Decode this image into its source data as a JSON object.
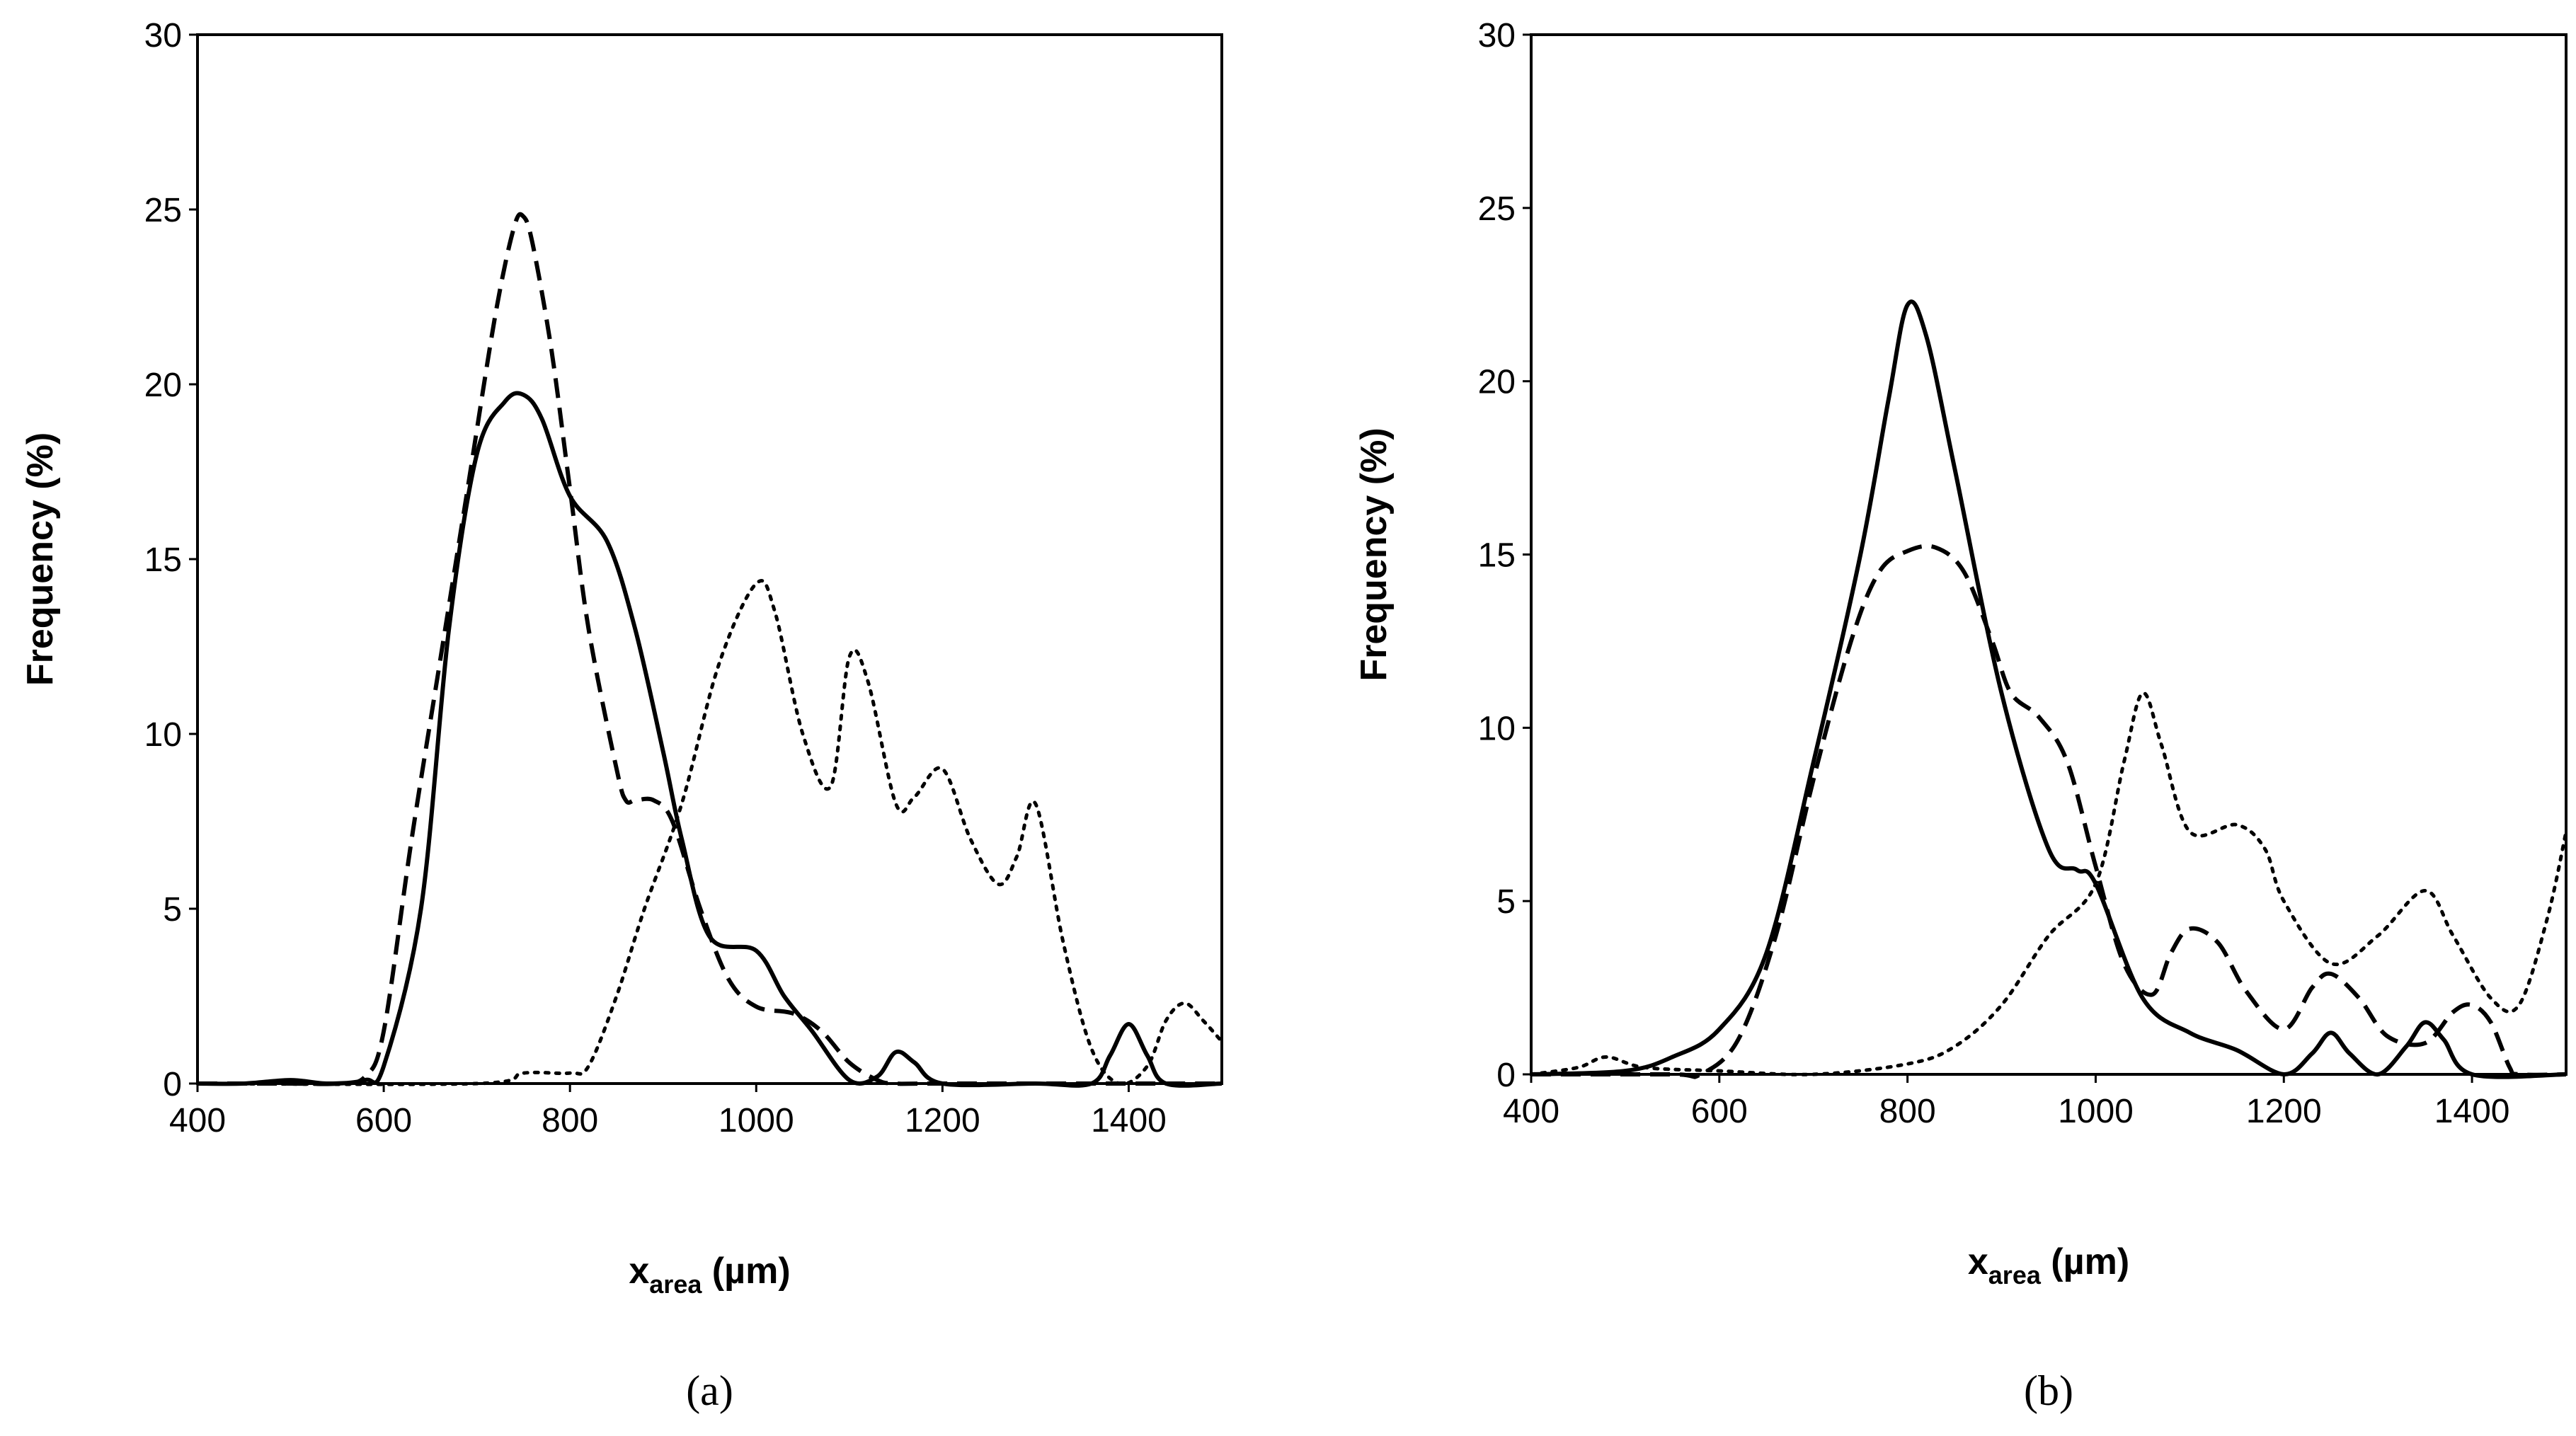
{
  "chart_data": [
    {
      "type": "line",
      "panel_label": "(a)",
      "panel_letter": "a",
      "xlabel_main": "x",
      "xlabel_sub": "area",
      "xlabel_unit": " (µm)",
      "ylabel": "Frequency (%)",
      "xlim": [
        400,
        1500
      ],
      "ylim": [
        0,
        30
      ],
      "x_ticks": [
        400,
        600,
        800,
        1000,
        1200,
        1400
      ],
      "y_ticks": [
        0,
        5,
        10,
        15,
        20,
        25,
        30
      ],
      "series": [
        {
          "name": "solid",
          "style": "solid",
          "x": [
            400,
            450,
            500,
            540,
            580,
            600,
            640,
            670,
            700,
            730,
            750,
            770,
            800,
            840,
            870,
            900,
            920,
            950,
            1000,
            1030,
            1060,
            1100,
            1130,
            1150,
            1170,
            1200,
            1300,
            1360,
            1380,
            1400,
            1420,
            1440,
            1500
          ],
          "y": [
            0,
            0,
            0.1,
            0,
            0.1,
            0.5,
            5,
            13,
            18,
            19.5,
            19.7,
            19,
            16.8,
            15.5,
            13,
            9.5,
            7,
            4.2,
            3.8,
            2.5,
            1.5,
            0.1,
            0.2,
            0.9,
            0.6,
            0,
            0,
            0,
            0.8,
            1.7,
            0.8,
            0,
            0
          ]
        },
        {
          "name": "dashed",
          "style": "dashed",
          "x": [
            400,
            500,
            550,
            580,
            600,
            630,
            660,
            690,
            720,
            740,
            750,
            760,
            780,
            800,
            820,
            850,
            860,
            870,
            890,
            910,
            940,
            970,
            1000,
            1040,
            1070,
            1100,
            1130,
            1150,
            1200,
            1500
          ],
          "y": [
            0,
            0,
            0,
            0.2,
            1.5,
            7,
            12,
            17,
            22,
            24.5,
            24.8,
            24,
            21,
            17,
            13,
            9,
            8.1,
            8.1,
            8.1,
            7.5,
            5,
            3,
            2.2,
            2,
            1.5,
            0.6,
            0.1,
            0,
            0,
            0
          ]
        },
        {
          "name": "dotted",
          "style": "dotted",
          "x": [
            400,
            700,
            750,
            800,
            820,
            850,
            880,
            920,
            960,
            1000,
            1020,
            1050,
            1080,
            1100,
            1120,
            1150,
            1170,
            1200,
            1230,
            1260,
            1280,
            1300,
            1330,
            1360,
            1390,
            1420,
            1440,
            1460,
            1480,
            1500
          ],
          "y": [
            0,
            0,
            0.3,
            0.3,
            0.5,
            2.5,
            5,
            8,
            12,
            14.3,
            13.5,
            10,
            8.5,
            12.2,
            11.5,
            8,
            8.2,
            9,
            7,
            5.7,
            6.5,
            8,
            4,
            1,
            0,
            0.5,
            1.8,
            2.3,
            1.8,
            1.2
          ]
        }
      ]
    },
    {
      "type": "line",
      "panel_label": "(b)",
      "panel_letter": "b",
      "xlabel_main": "x",
      "xlabel_sub": "area",
      "xlabel_unit": " (µm)",
      "ylabel": "Frequency (%)",
      "xlim": [
        400,
        1500
      ],
      "ylim": [
        0,
        30
      ],
      "x_ticks": [
        400,
        600,
        800,
        1000,
        1200,
        1400
      ],
      "y_ticks": [
        0,
        5,
        10,
        15,
        20,
        25,
        30
      ],
      "series": [
        {
          "name": "solid",
          "style": "solid",
          "x": [
            400,
            500,
            550,
            600,
            650,
            700,
            750,
            780,
            800,
            820,
            850,
            900,
            950,
            980,
            1000,
            1050,
            1100,
            1150,
            1200,
            1230,
            1250,
            1270,
            1300,
            1330,
            1350,
            1370,
            1400,
            1500
          ],
          "y": [
            0,
            0.1,
            0.5,
            1.3,
            3.5,
            9,
            15,
            19.5,
            22.2,
            21.3,
            17.5,
            11,
            6.5,
            5.9,
            5.5,
            2.2,
            1.2,
            0.7,
            0,
            0.6,
            1.2,
            0.6,
            0,
            0.8,
            1.5,
            1,
            0,
            0
          ]
        },
        {
          "name": "dashed",
          "style": "dashed",
          "x": [
            400,
            550,
            580,
            620,
            660,
            700,
            740,
            770,
            800,
            830,
            860,
            890,
            910,
            940,
            970,
            1000,
            1030,
            1060,
            1080,
            1100,
            1130,
            1160,
            1200,
            1230,
            1250,
            1280,
            1310,
            1350,
            1380,
            1400,
            1420,
            1440,
            1450,
            1500
          ],
          "y": [
            0,
            0,
            0,
            1,
            4,
            8.5,
            12.5,
            14.5,
            15.1,
            15.2,
            14.5,
            12.5,
            11,
            10.3,
            9,
            6,
            3.2,
            2.3,
            3.5,
            4.2,
            3.8,
            2.4,
            1.3,
            2.5,
            2.9,
            2.2,
            1.1,
            0.9,
            1.8,
            2,
            1.5,
            0.2,
            0,
            0
          ]
        },
        {
          "name": "dotted",
          "style": "dotted",
          "x": [
            400,
            450,
            480,
            520,
            600,
            700,
            800,
            850,
            900,
            950,
            1000,
            1030,
            1050,
            1070,
            1100,
            1150,
            1180,
            1200,
            1250,
            1300,
            1350,
            1380,
            1420,
            1450,
            1480,
            1500
          ],
          "y": [
            0,
            0.2,
            0.5,
            0.2,
            0.1,
            0,
            0.3,
            0.8,
            2,
            4,
            5.5,
            9,
            11,
            9.5,
            7,
            7.2,
            6.5,
            5,
            3.2,
            4,
            5.3,
            4,
            2.2,
            2,
            4.5,
            7
          ]
        }
      ]
    }
  ]
}
